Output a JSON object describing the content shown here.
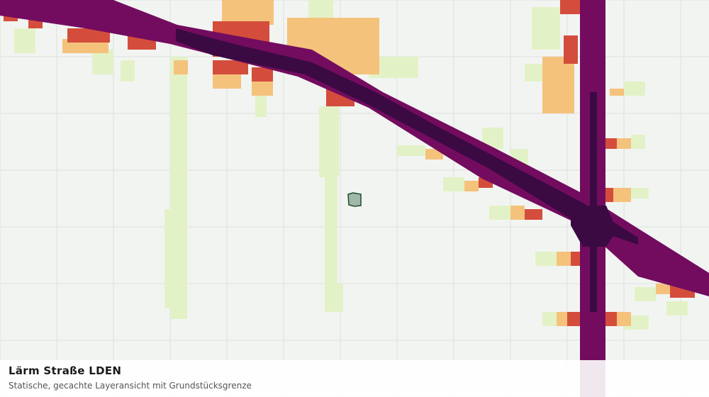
{
  "legend": {
    "title": "Lärm Straße LDEN",
    "subtitle": "Statische, gecachte Layeransicht mit Grundstücksgrenze"
  }
}
